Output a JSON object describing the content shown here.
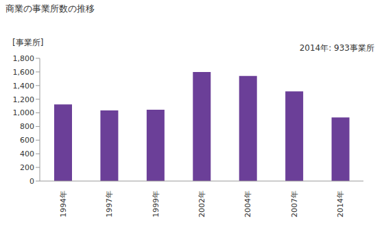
{
  "chart_data": {
    "type": "bar",
    "title": "商業の事業所数の推移",
    "y_label": "[事業所]",
    "annotation": "2014年: 933事業所",
    "categories": [
      "1994年",
      "1997年",
      "1999年",
      "2002年",
      "2004年",
      "2007年",
      "2014年"
    ],
    "values": [
      1125,
      1035,
      1045,
      1600,
      1540,
      1315,
      933
    ],
    "color": "#6b3f98",
    "ylim": [
      0,
      1800
    ],
    "yticks": [
      0,
      200,
      400,
      600,
      800,
      {
        "value": 1000,
        "label": "1,000"
      },
      {
        "value": 1200,
        "label": "1,200"
      },
      {
        "value": 1400,
        "label": "1,400"
      },
      {
        "value": 1600,
        "label": "1,600"
      },
      {
        "value": 1800,
        "label": "1,800"
      }
    ],
    "grid": false
  }
}
